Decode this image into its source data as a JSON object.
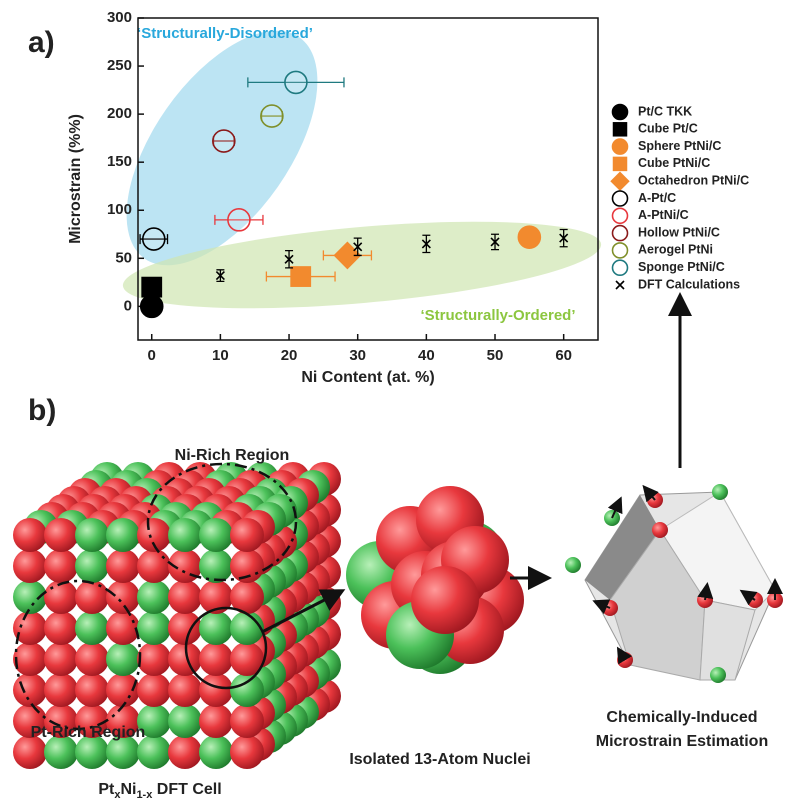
{
  "chart_data": {
    "type": "scatter",
    "panel_label": "a)",
    "xlabel": "Ni Content (at. %)",
    "ylabel": "Microstrain (%%)",
    "xlim": [
      -2,
      65
    ],
    "ylim": [
      -35,
      300
    ],
    "xticks": [
      0,
      10,
      20,
      30,
      40,
      50,
      60
    ],
    "yticks": [
      0,
      50,
      100,
      150,
      200,
      250,
      300
    ],
    "legend": "right",
    "annotations": [
      {
        "text": "‘Structurally-Disordered’",
        "color": "#29a8dc"
      },
      {
        "text": "‘Structurally-Ordered’",
        "color": "#8cc63f"
      }
    ],
    "series": [
      {
        "name": "Pt/C TKK",
        "color": "#000000",
        "marker": "circle",
        "filled": true,
        "x": [
          0
        ],
        "values": [
          0
        ]
      },
      {
        "name": "Cube Pt/C",
        "color": "#000000",
        "marker": "square",
        "filled": true,
        "x": [
          0
        ],
        "values": [
          20
        ]
      },
      {
        "name": "Sphere PtNi/C",
        "color": "#f28a2e",
        "marker": "circle",
        "filled": true,
        "x": [
          55
        ],
        "values": [
          72
        ]
      },
      {
        "name": "Cube PtNi/C",
        "color": "#f28a2e",
        "marker": "square",
        "filled": true,
        "x": [
          21.7
        ],
        "values": [
          31
        ],
        "xerr": [
          5
        ]
      },
      {
        "name": "Octahedron PtNi/C",
        "color": "#f28a2e",
        "marker": "diamond",
        "filled": true,
        "x": [
          28.5
        ],
        "values": [
          53
        ],
        "xerr": [
          3.5
        ]
      },
      {
        "name": "A-Pt/C",
        "color": "#000000",
        "marker": "circle",
        "filled": false,
        "x": [
          0.3
        ],
        "values": [
          70
        ],
        "xerr": [
          2
        ]
      },
      {
        "name": "A-PtNi/C",
        "color": "#e8383d",
        "marker": "circle",
        "filled": false,
        "x": [
          12.7
        ],
        "values": [
          90
        ],
        "xerr": [
          3.5
        ]
      },
      {
        "name": "Hollow PtNi/C",
        "color": "#8b1a1a",
        "marker": "circle",
        "filled": false,
        "x": [
          10.5
        ],
        "values": [
          172
        ],
        "xerr": [
          1.5
        ]
      },
      {
        "name": "Aerogel PtNi",
        "color": "#7f8f2a",
        "marker": "circle",
        "filled": false,
        "x": [
          17.5
        ],
        "values": [
          198
        ],
        "xerr": [
          1.5
        ]
      },
      {
        "name": "Sponge PtNi/C",
        "color": "#1f7a80",
        "marker": "circle",
        "filled": false,
        "x": [
          21
        ],
        "values": [
          233
        ],
        "xerr": [
          7
        ]
      },
      {
        "name": "DFT Calculations",
        "color": "#000000",
        "marker": "x",
        "filled": false,
        "x": [
          10,
          20,
          30,
          40,
          50,
          60
        ],
        "values": [
          32,
          49,
          62,
          65,
          67,
          71
        ],
        "yerr": [
          6,
          9,
          9,
          9,
          8,
          9
        ]
      }
    ]
  },
  "diagram": {
    "panel_label": "b)",
    "ni_rich": "Ni-Rich Region",
    "pt_rich": "Pt-Rich Region",
    "cell_label": [
      "Pt",
      "x",
      "Ni",
      "1-x",
      " DFT Cell"
    ],
    "nuclei_label": "Isolated 13-Atom Nuclei",
    "estimation_label": [
      "Chemically-Induced",
      "Microstrain Estimation"
    ]
  }
}
